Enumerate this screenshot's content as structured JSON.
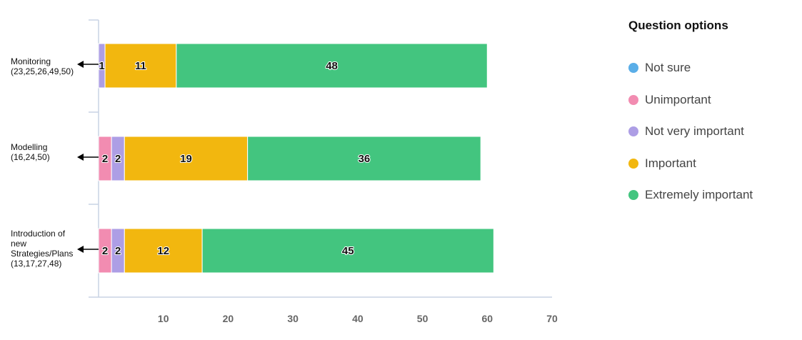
{
  "chart_data": {
    "type": "bar",
    "orientation": "horizontal",
    "stacked": true,
    "categories": [
      "Monitoring (23,25,26,49,50)",
      "Modelling (16,24,50)",
      "Introduction of new Strategies/Plans (13,17,27,48)"
    ],
    "category_lines": [
      [
        "Monitoring",
        "(23,25,26,49,50)"
      ],
      [
        "Modelling",
        "(16,24,50)"
      ],
      [
        "Introduction of",
        "new",
        "Strategies/Plans",
        "(13,17,27,48)"
      ]
    ],
    "series": [
      {
        "name": "Not sure",
        "color": "#5aaee8",
        "values": [
          0,
          0,
          0
        ]
      },
      {
        "name": "Unimportant",
        "color": "#f28cb1",
        "values": [
          0,
          2,
          2
        ]
      },
      {
        "name": "Not very important",
        "color": "#ad9ee5",
        "values": [
          1,
          2,
          2
        ]
      },
      {
        "name": "Important",
        "color": "#f2b70f",
        "values": [
          11,
          19,
          12
        ]
      },
      {
        "name": "Extremely important",
        "color": "#43c57f",
        "values": [
          48,
          36,
          45
        ]
      }
    ],
    "xlim": [
      0,
      70
    ],
    "xticks": [
      10,
      20,
      30,
      40,
      50,
      60,
      70
    ],
    "grid": false,
    "legend_title": "Question options",
    "legend_position": "right"
  }
}
